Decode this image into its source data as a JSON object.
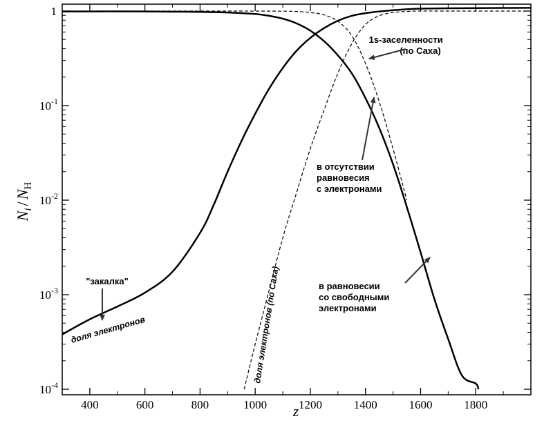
{
  "chart_data": {
    "type": "line",
    "xlabel": "z",
    "ylabel_main": "N",
    "ylabel_main_sub": "i",
    "ylabel_sep": "/",
    "ylabel_den": "N",
    "ylabel_den_sub": "H",
    "xlim": [
      300,
      2000
    ],
    "ylim": [
      0.0001,
      1.3
    ],
    "yscale": "log",
    "x_ticks": [
      400,
      600,
      800,
      1000,
      1200,
      1400,
      1600,
      1800
    ],
    "x_tick_labels": [
      "400",
      "600",
      "800",
      "1000",
      "1200",
      "1400",
      "1600",
      "1800"
    ],
    "y_ticks": [
      {
        "value": 1,
        "base": "1",
        "exp": ""
      },
      {
        "value": 0.1,
        "base": "10",
        "exp": "-1"
      },
      {
        "value": 0.01,
        "base": "10",
        "exp": "-2"
      },
      {
        "value": 0.001,
        "base": "10",
        "exp": "-3"
      },
      {
        "value": 0.0001,
        "base": "10",
        "exp": "-4"
      }
    ],
    "grid": false,
    "series": [
      {
        "id": "electron-fraction",
        "style": "solid",
        "x": [
          300,
          400,
          500,
          600,
          700,
          800,
          850,
          900,
          950,
          1000,
          1050,
          1100,
          1150,
          1200,
          1250,
          1300,
          1350,
          1400,
          1450,
          1500,
          1550,
          1600,
          1700,
          1800,
          1900,
          2000
        ],
        "y": [
          0.00038,
          0.00055,
          0.00075,
          0.00105,
          0.00175,
          0.0045,
          0.009,
          0.02,
          0.042,
          0.082,
          0.15,
          0.25,
          0.38,
          0.52,
          0.66,
          0.79,
          0.89,
          0.95,
          0.99,
          1.02,
          1.045,
          1.06,
          1.07,
          1.075,
          1.078,
          1.08
        ]
      },
      {
        "id": "1s-population",
        "style": "solid",
        "x": [
          300,
          600,
          800,
          900,
          1000,
          1050,
          1100,
          1150,
          1200,
          1250,
          1300,
          1350,
          1400,
          1450,
          1500,
          1550,
          1600,
          1650,
          1700,
          1750,
          1800,
          1810
        ],
        "y": [
          0.99,
          0.99,
          0.98,
          0.965,
          0.93,
          0.89,
          0.83,
          0.74,
          0.62,
          0.48,
          0.34,
          0.22,
          0.12,
          0.058,
          0.024,
          0.0085,
          0.0028,
          0.0009,
          0.00034,
          0.00014,
          0.000115,
          0.0001
        ]
      },
      {
        "id": "electron-fraction-saha",
        "style": "dashed",
        "x": [
          960,
          1000,
          1050,
          1100,
          1150,
          1200,
          1250,
          1300,
          1350,
          1400,
          1450,
          1500,
          1550,
          1600,
          1700,
          1800,
          2000
        ],
        "y": [
          0.0001,
          0.0003,
          0.0011,
          0.004,
          0.012,
          0.035,
          0.09,
          0.22,
          0.45,
          0.72,
          0.89,
          0.965,
          0.99,
          1.0,
          1.0,
          1.0,
          1.0
        ]
      },
      {
        "id": "1s-population-saha",
        "style": "dashed",
        "x": [
          300,
          800,
          1000,
          1100,
          1150,
          1200,
          1250,
          1300,
          1350,
          1400,
          1450,
          1500,
          1550
        ],
        "y": [
          1.0,
          1.0,
          0.999,
          0.996,
          0.99,
          0.965,
          0.91,
          0.78,
          0.55,
          0.28,
          0.11,
          0.035,
          0.01
        ]
      }
    ],
    "annotations": {
      "quench": "\"закалка\"",
      "electron_fraction": "доля электронов",
      "electron_fraction_saha": "доля электронов (по Саха)",
      "saha_1s_line1": "1s-заселенности",
      "saha_1s_line2": "(по Саха)",
      "noneq_line1": "в отсутствии",
      "noneq_line2": "равновесия",
      "noneq_line3": "с электронами",
      "eq_line1": "в равновесии",
      "eq_line2": "со свободными",
      "eq_line3": "электронами"
    }
  }
}
